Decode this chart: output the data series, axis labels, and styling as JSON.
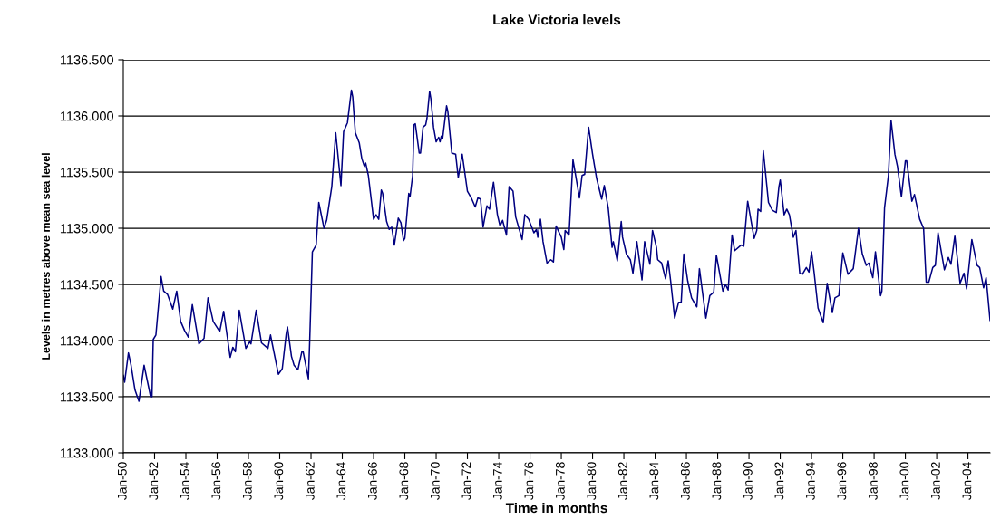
{
  "chart_data": {
    "type": "line",
    "title": "Lake Victoria levels",
    "xlabel": "Time in months",
    "ylabel": "Levels in metres above mean sea level",
    "x": [
      "1950-01",
      "1950-02",
      "1950-05",
      "1950-07",
      "1950-10",
      "1951-01",
      "1951-05",
      "1951-10",
      "1951-11",
      "1951-12",
      "1952-02",
      "1952-06",
      "1952-08",
      "1952-11",
      "1953-03",
      "1953-06",
      "1953-09",
      "1953-12",
      "1954-03",
      "1954-06",
      "1954-11",
      "1955-03",
      "1955-06",
      "1955-10",
      "1956-03",
      "1956-06",
      "1956-11",
      "1957-01",
      "1957-03",
      "1957-06",
      "1957-11",
      "1958-02",
      "1958-03",
      "1958-07",
      "1958-11",
      "1959-04",
      "1959-06",
      "1959-07",
      "1959-12",
      "1960-03",
      "1960-06",
      "1960-07",
      "1960-10",
      "1960-12",
      "1961-03",
      "1961-06",
      "1961-07",
      "1961-11",
      "1961-12",
      "1962-02",
      "1962-05",
      "1962-07",
      "1962-11",
      "1963-01",
      "1963-05",
      "1963-08",
      "1963-12",
      "1964-02",
      "1964-05",
      "1964-08",
      "1964-09",
      "1964-11",
      "1965-02",
      "1965-04",
      "1965-06",
      "1965-07",
      "1965-09",
      "1966-01",
      "1966-03",
      "1966-05",
      "1966-07",
      "1966-08",
      "1966-11",
      "1967-01",
      "1967-03",
      "1967-05",
      "1967-08",
      "1967-10",
      "1967-12",
      "1968-01",
      "1968-04",
      "1968-05",
      "1968-07",
      "1968-08",
      "1968-09",
      "1968-12",
      "1969-01",
      "1969-03",
      "1969-05",
      "1969-06",
      "1969-08",
      "1969-09",
      "1969-11",
      "1970-01",
      "1970-03",
      "1970-04",
      "1970-05",
      "1970-06",
      "1970-09",
      "1970-10",
      "1971-01",
      "1971-04",
      "1971-06",
      "1971-09",
      "1972-01",
      "1972-04",
      "1972-07",
      "1972-09",
      "1972-11",
      "1973-01",
      "1973-04",
      "1973-06",
      "1973-09",
      "1973-12",
      "1974-02",
      "1974-04",
      "1974-07",
      "1974-09",
      "1974-12",
      "1975-02",
      "1975-07",
      "1975-09",
      "1975-12",
      "1976-04",
      "1976-06",
      "1976-07",
      "1976-09",
      "1976-11",
      "1977-02",
      "1977-05",
      "1977-07",
      "1977-09",
      "1978-01",
      "1978-03",
      "1978-04",
      "1978-07",
      "1978-10",
      "1979-03",
      "1979-05",
      "1979-07",
      "1979-10",
      "1980-01",
      "1980-04",
      "1980-08",
      "1980-10",
      "1981-01",
      "1981-04",
      "1981-05",
      "1981-08",
      "1981-11",
      "1981-12",
      "1982-03",
      "1982-06",
      "1982-08",
      "1982-11",
      "1983-03",
      "1983-05",
      "1983-09",
      "1983-11",
      "1984-02",
      "1984-03",
      "1984-06",
      "1984-09",
      "1984-11",
      "1985-01",
      "1985-04",
      "1985-07",
      "1985-09",
      "1985-11",
      "1986-02",
      "1986-05",
      "1986-09",
      "1986-11",
      "1987-02",
      "1987-04",
      "1987-07",
      "1987-10",
      "1987-12",
      "1988-05",
      "1988-07",
      "1988-09",
      "1988-12",
      "1989-02",
      "1989-07",
      "1989-09",
      "1989-12",
      "1990-05",
      "1990-07",
      "1990-08",
      "1990-10",
      "1990-12",
      "1991-04",
      "1991-07",
      "1991-10",
      "1991-12",
      "1992-01",
      "1992-04",
      "1992-06",
      "1992-08",
      "1992-11",
      "1993-01",
      "1993-04",
      "1993-06",
      "1993-09",
      "1993-11",
      "1994-01",
      "1994-03",
      "1994-06",
      "1994-10",
      "1995-01",
      "1995-05",
      "1995-07",
      "1995-10",
      "1996-01",
      "1996-05",
      "1996-09",
      "1997-01",
      "1997-04",
      "1997-07",
      "1997-09",
      "1997-12",
      "1998-02",
      "1998-06",
      "1998-07",
      "1998-09",
      "1998-12",
      "1999-02",
      "1999-05",
      "1999-07",
      "1999-10",
      "2000-01",
      "2000-02",
      "2000-06",
      "2000-08",
      "2000-12",
      "2001-03",
      "2001-05",
      "2001-07",
      "2001-10",
      "2001-12",
      "2002-02",
      "2002-07",
      "2002-10",
      "2002-12",
      "2003-03",
      "2003-07",
      "2003-10",
      "2003-12",
      "2004-04",
      "2004-08",
      "2004-10",
      "2005-01",
      "2005-03",
      "2005-06"
    ],
    "series": [
      {
        "color": "#000080",
        "values": [
          1133.69,
          1133.63,
          1133.89,
          1133.78,
          1133.56,
          1133.46,
          1133.78,
          1133.5,
          1133.5,
          1134.01,
          1134.05,
          1134.57,
          1134.44,
          1134.41,
          1134.28,
          1134.44,
          1134.17,
          1134.09,
          1134.03,
          1134.32,
          1133.97,
          1134.02,
          1134.38,
          1134.17,
          1134.08,
          1134.26,
          1133.85,
          1133.94,
          1133.9,
          1134.27,
          1133.93,
          1133.99,
          1133.97,
          1134.27,
          1133.98,
          1133.93,
          1134.05,
          1133.99,
          1133.7,
          1133.75,
          1134.06,
          1134.12,
          1133.86,
          1133.78,
          1133.74,
          1133.9,
          1133.9,
          1133.66,
          1133.99,
          1134.79,
          1134.85,
          1135.23,
          1135.0,
          1135.07,
          1135.37,
          1135.85,
          1135.38,
          1135.86,
          1135.94,
          1136.23,
          1136.17,
          1135.85,
          1135.76,
          1135.62,
          1135.55,
          1135.58,
          1135.47,
          1135.08,
          1135.12,
          1135.08,
          1135.34,
          1135.31,
          1135.06,
          1134.99,
          1135.01,
          1134.85,
          1135.09,
          1135.05,
          1134.89,
          1134.91,
          1135.31,
          1135.28,
          1135.47,
          1135.92,
          1135.93,
          1135.67,
          1135.67,
          1135.9,
          1135.92,
          1135.98,
          1136.22,
          1136.15,
          1135.9,
          1135.77,
          1135.81,
          1135.77,
          1135.82,
          1135.8,
          1136.09,
          1136.04,
          1135.67,
          1135.66,
          1135.45,
          1135.66,
          1135.33,
          1135.27,
          1135.19,
          1135.27,
          1135.26,
          1135.01,
          1135.2,
          1135.17,
          1135.41,
          1135.12,
          1135.02,
          1135.07,
          1134.94,
          1135.37,
          1135.33,
          1135.1,
          1134.9,
          1135.12,
          1135.08,
          1134.96,
          1134.99,
          1134.92,
          1135.08,
          1134.88,
          1134.69,
          1134.72,
          1134.7,
          1135.02,
          1134.92,
          1134.81,
          1134.98,
          1134.94,
          1135.61,
          1135.27,
          1135.47,
          1135.48,
          1135.9,
          1135.66,
          1135.45,
          1135.26,
          1135.38,
          1135.18,
          1134.83,
          1134.88,
          1134.71,
          1135.06,
          1134.92,
          1134.77,
          1134.72,
          1134.6,
          1134.88,
          1134.54,
          1134.88,
          1134.68,
          1134.98,
          1134.83,
          1134.72,
          1134.69,
          1134.55,
          1134.71,
          1134.52,
          1134.2,
          1134.34,
          1134.34,
          1134.77,
          1134.53,
          1134.38,
          1134.3,
          1134.64,
          1134.37,
          1134.2,
          1134.4,
          1134.43,
          1134.76,
          1134.44,
          1134.5,
          1134.45,
          1134.94,
          1134.8,
          1134.85,
          1134.84,
          1135.24,
          1134.91,
          1134.98,
          1135.17,
          1135.15,
          1135.69,
          1135.23,
          1135.16,
          1135.14,
          1135.37,
          1135.43,
          1135.12,
          1135.17,
          1135.12,
          1134.92,
          1134.98,
          1134.6,
          1134.59,
          1134.65,
          1134.61,
          1134.79,
          1134.61,
          1134.29,
          1134.16,
          1134.51,
          1134.25,
          1134.38,
          1134.4,
          1134.78,
          1134.59,
          1134.64,
          1135.0,
          1134.77,
          1134.67,
          1134.69,
          1134.56,
          1134.79,
          1134.4,
          1134.44,
          1135.18,
          1135.47,
          1135.96,
          1135.66,
          1135.55,
          1135.28,
          1135.6,
          1135.6,
          1135.24,
          1135.3,
          1135.08,
          1135.0,
          1134.52,
          1134.52,
          1134.65,
          1134.67,
          1134.96,
          1134.63,
          1134.74,
          1134.68,
          1134.93,
          1134.51,
          1134.6,
          1134.46,
          1134.9,
          1134.67,
          1134.65,
          1134.47,
          1134.56,
          1134.18
        ]
      }
    ],
    "xlim": [
      "1950-01",
      "2005-06"
    ],
    "xticks": [
      {
        "value": "1950-01",
        "label": "Jan-50"
      },
      {
        "value": "1952-01",
        "label": "Jan-52"
      },
      {
        "value": "1954-01",
        "label": "Jan-54"
      },
      {
        "value": "1956-01",
        "label": "Jan-56"
      },
      {
        "value": "1958-01",
        "label": "Jan-58"
      },
      {
        "value": "1960-01",
        "label": "Jan-60"
      },
      {
        "value": "1962-01",
        "label": "Jan-62"
      },
      {
        "value": "1964-01",
        "label": "Jan-64"
      },
      {
        "value": "1966-01",
        "label": "Jan-66"
      },
      {
        "value": "1968-01",
        "label": "Jan-68"
      },
      {
        "value": "1970-01",
        "label": "Jan-70"
      },
      {
        "value": "1972-01",
        "label": "Jan-72"
      },
      {
        "value": "1974-01",
        "label": "Jan-74"
      },
      {
        "value": "1976-01",
        "label": "Jan-76"
      },
      {
        "value": "1978-01",
        "label": "Jan-78"
      },
      {
        "value": "1980-01",
        "label": "Jan-80"
      },
      {
        "value": "1982-01",
        "label": "Jan-82"
      },
      {
        "value": "1984-01",
        "label": "Jan-84"
      },
      {
        "value": "1986-01",
        "label": "Jan-86"
      },
      {
        "value": "1988-01",
        "label": "Jan-88"
      },
      {
        "value": "1990-01",
        "label": "Jan-90"
      },
      {
        "value": "1992-01",
        "label": "Jan-92"
      },
      {
        "value": "1994-01",
        "label": "Jan-94"
      },
      {
        "value": "1996-01",
        "label": "Jan-96"
      },
      {
        "value": "1998-01",
        "label": "Jan-98"
      },
      {
        "value": "2000-01",
        "label": "Jan-00"
      },
      {
        "value": "2002-01",
        "label": "Jan-02"
      },
      {
        "value": "2004-01",
        "label": "Jan-04"
      }
    ],
    "ylim": [
      1133,
      1136.5
    ],
    "yticks": [
      {
        "value": 1133,
        "label": "1133.000"
      },
      {
        "value": 1133.5,
        "label": "1133.500"
      },
      {
        "value": 1134,
        "label": "1134.000"
      },
      {
        "value": 1134.5,
        "label": "1134.500"
      },
      {
        "value": 1135,
        "label": "1135.000"
      },
      {
        "value": 1135.5,
        "label": "1135.500"
      },
      {
        "value": 1136,
        "label": "1136.000"
      },
      {
        "value": 1136.5,
        "label": "1136.500"
      }
    ],
    "grid": "y",
    "marker": "none",
    "line_style": "solid"
  }
}
